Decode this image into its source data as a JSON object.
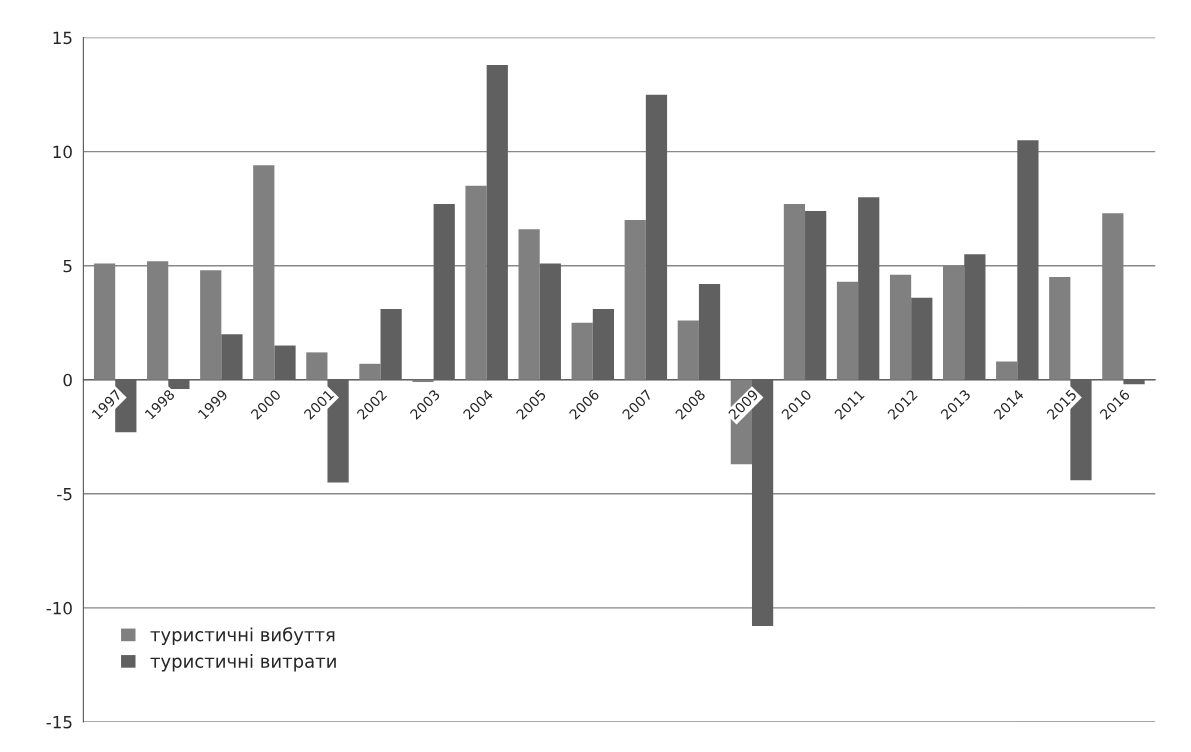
{
  "chart_data": {
    "type": "bar",
    "categories": [
      "1997",
      "1998",
      "1999",
      "2000",
      "2001",
      "2002",
      "2003",
      "2004",
      "2005",
      "2006",
      "2007",
      "2008",
      "2009",
      "2010",
      "2011",
      "2012",
      "2013",
      "2014",
      "2015",
      "2016"
    ],
    "series": [
      {
        "name": "туристичні вибуття",
        "color": "#808080",
        "values": [
          5.1,
          5.2,
          4.8,
          9.4,
          1.2,
          0.7,
          -0.1,
          8.5,
          6.6,
          2.5,
          7.0,
          2.6,
          -3.7,
          7.7,
          4.3,
          4.6,
          5.0,
          0.8,
          4.5,
          7.3
        ]
      },
      {
        "name": "туристичні витрати",
        "color": "#606060",
        "values": [
          -2.3,
          -0.4,
          2.0,
          1.5,
          -4.5,
          3.1,
          7.7,
          13.8,
          5.1,
          3.1,
          12.5,
          4.2,
          -10.8,
          7.4,
          8.0,
          3.6,
          5.5,
          10.5,
          -4.4,
          -0.2
        ]
      }
    ],
    "ylim": [
      -15,
      15
    ],
    "yticks": [
      -15,
      -10,
      -5,
      0,
      5,
      10,
      15
    ],
    "grid": "y",
    "legend": "bottom left"
  }
}
